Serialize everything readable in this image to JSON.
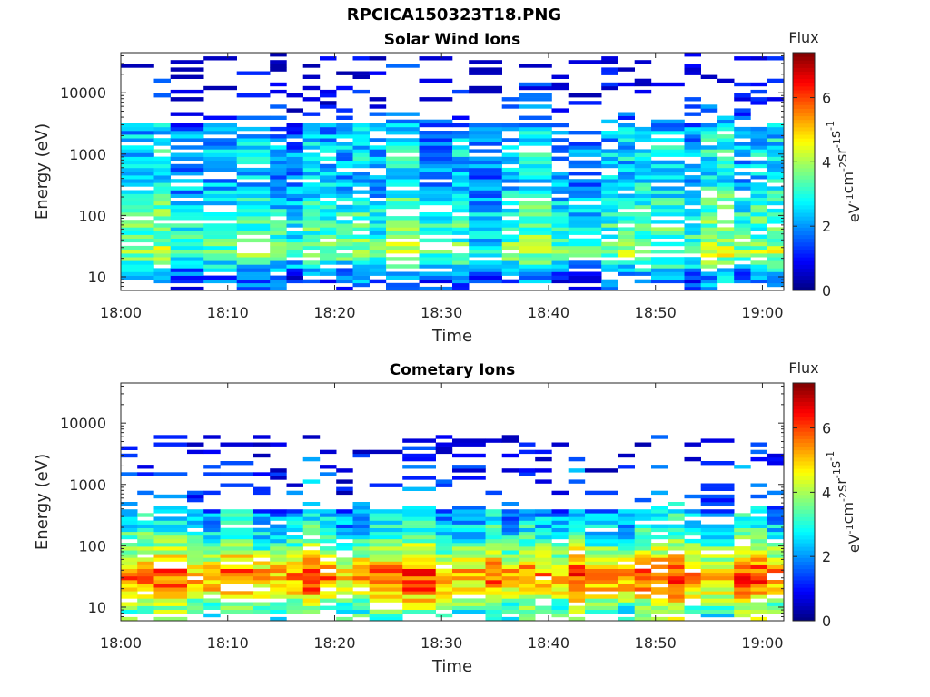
{
  "figure": {
    "title": "RPCICA150323T18.PNG"
  },
  "chart_data": [
    {
      "type": "heatmap",
      "title": "Solar Wind Ions",
      "xlabel": "Time",
      "ylabel": "Energy (eV)",
      "xlim": [
        "18:00",
        "19:02"
      ],
      "ylim": [
        6,
        45000
      ],
      "yscale": "log",
      "x_ticks": [
        "18:00",
        "18:10",
        "18:20",
        "18:30",
        "18:40",
        "18:50",
        "19:00"
      ],
      "y_ticks": [
        "10",
        "100",
        "1000",
        "10000"
      ],
      "grid": false,
      "colorbar": {
        "title": "Flux",
        "label": "eV-1cm-2sr-1s-1",
        "range": [
          0,
          7.4
        ],
        "ticks": [
          "0",
          "2",
          "4",
          "6"
        ],
        "colormap": "jet"
      },
      "profile": {
        "description": "log10 flux, approximate, per energy band; sparse coverage above 3 keV",
        "bands": [
          {
            "energy_eV": 10,
            "flux": 1.6
          },
          {
            "energy_eV": 25,
            "flux": 3.8
          },
          {
            "energy_eV": 40,
            "flux": 3.2
          },
          {
            "energy_eV": 100,
            "flux": 3.0
          },
          {
            "energy_eV": 200,
            "flux": 2.6
          },
          {
            "energy_eV": 500,
            "flux": 2.2
          },
          {
            "energy_eV": 1000,
            "flux": 2.4
          },
          {
            "energy_eV": 2500,
            "flux": 2.1
          },
          {
            "energy_eV": 10000,
            "flux": 0.6
          },
          {
            "energy_eV": 30000,
            "flux": 0.4
          }
        ]
      }
    },
    {
      "type": "heatmap",
      "title": "Cometary Ions",
      "xlabel": "Time",
      "ylabel": "Energy (eV)",
      "xlim": [
        "18:00",
        "19:02"
      ],
      "ylim": [
        6,
        45000
      ],
      "yscale": "log",
      "x_ticks": [
        "18:00",
        "18:10",
        "18:20",
        "18:30",
        "18:40",
        "18:50",
        "19:00"
      ],
      "y_ticks": [
        "10",
        "100",
        "1000",
        "10000"
      ],
      "grid": false,
      "colorbar": {
        "title": "Flux",
        "label": "eV-1cm-2sr-1s-1",
        "range": [
          0,
          7.4
        ],
        "ticks": [
          "0",
          "2",
          "4",
          "6"
        ],
        "colormap": "jet"
      },
      "profile": {
        "description": "log10 flux, approximate, per energy band; intense 15-60 eV population",
        "bands": [
          {
            "energy_eV": 10,
            "flux": 3.4
          },
          {
            "energy_eV": 20,
            "flux": 5.2
          },
          {
            "energy_eV": 35,
            "flux": 5.6
          },
          {
            "energy_eV": 60,
            "flux": 4.6
          },
          {
            "energy_eV": 120,
            "flux": 3.2
          },
          {
            "energy_eV": 250,
            "flux": 2.5
          },
          {
            "energy_eV": 1000,
            "flux": 1.4
          },
          {
            "energy_eV": 2500,
            "flux": 1.1
          },
          {
            "energy_eV": 5000,
            "flux": 0.5
          }
        ]
      }
    }
  ]
}
